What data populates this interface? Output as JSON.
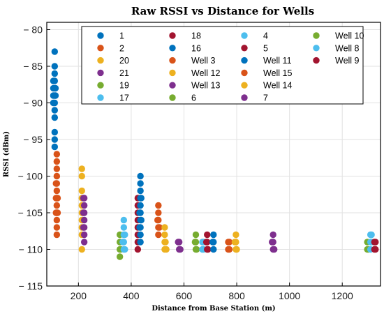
{
  "chart_data": {
    "type": "scatter",
    "title": "Raw RSSI vs Distance for Wells",
    "xlabel": "Distance from Base Station (m)",
    "ylabel": "RSSI (dBm)",
    "xlim": [
      80,
      1345
    ],
    "ylim": [
      -115,
      -79
    ],
    "xticks": [
      200,
      400,
      600,
      800,
      1000,
      1200
    ],
    "yticks": [
      -115,
      -110,
      -105,
      -100,
      -95,
      -90,
      -85,
      -80
    ],
    "grid": true,
    "legend_position": "top",
    "legend_columns": 4,
    "series": [
      {
        "name": "1",
        "color": "#0072BD",
        "points": [
          [
            110,
            -83
          ],
          [
            110,
            -85
          ],
          [
            110,
            -86
          ],
          [
            110,
            -87
          ],
          [
            110,
            -88
          ],
          [
            110,
            -89
          ],
          [
            110,
            -90
          ],
          [
            110,
            -91
          ],
          [
            110,
            -92
          ],
          [
            110,
            -94
          ],
          [
            110,
            -95
          ],
          [
            110,
            -96
          ],
          [
            105,
            -87
          ],
          [
            105,
            -88
          ],
          [
            105,
            -89
          ],
          [
            105,
            -90
          ],
          [
            113,
            -88
          ],
          [
            113,
            -89
          ]
        ]
      },
      {
        "name": "2",
        "color": "#D95319",
        "points": [
          [
            118,
            -97
          ],
          [
            118,
            -98
          ],
          [
            118,
            -99
          ],
          [
            118,
            -100
          ],
          [
            118,
            -101
          ],
          [
            118,
            -102
          ],
          [
            118,
            -103
          ],
          [
            118,
            -104
          ],
          [
            118,
            -105
          ],
          [
            118,
            -106
          ],
          [
            118,
            -107
          ],
          [
            118,
            -108
          ],
          [
            115,
            -101
          ],
          [
            115,
            -103
          ],
          [
            115,
            -105
          ],
          [
            121,
            -103
          ],
          [
            121,
            -105
          ]
        ]
      },
      {
        "name": "20",
        "color": "#EDB120",
        "points": [
          [
            213,
            -99
          ],
          [
            213,
            -100
          ],
          [
            213,
            -102
          ],
          [
            213,
            -103
          ],
          [
            213,
            -104
          ],
          [
            213,
            -105
          ],
          [
            213,
            -106
          ],
          [
            213,
            -107
          ],
          [
            213,
            -108
          ],
          [
            213,
            -110
          ],
          [
            216,
            -105
          ],
          [
            216,
            -106
          ]
        ]
      },
      {
        "name": "21",
        "color": "#7E2F8E",
        "points": [
          [
            222,
            -103
          ],
          [
            222,
            -104
          ],
          [
            222,
            -105
          ],
          [
            222,
            -106
          ],
          [
            222,
            -107
          ],
          [
            222,
            -108
          ],
          [
            222,
            -109
          ],
          [
            219,
            -103
          ],
          [
            219,
            -105
          ],
          [
            219,
            -107
          ]
        ]
      },
      {
        "name": "19",
        "color": "#77AC30",
        "points": [
          [
            357,
            -108
          ],
          [
            357,
            -109
          ],
          [
            357,
            -110
          ],
          [
            357,
            -111
          ],
          [
            360,
            -110
          ]
        ]
      },
      {
        "name": "17",
        "color": "#4DBEEE",
        "points": [
          [
            372,
            -106
          ],
          [
            372,
            -107
          ],
          [
            372,
            -108
          ],
          [
            372,
            -109
          ],
          [
            372,
            -110
          ],
          [
            368,
            -109
          ],
          [
            376,
            -108
          ],
          [
            376,
            -110
          ]
        ]
      },
      {
        "name": "18",
        "color": "#A2142F",
        "points": [
          [
            425,
            -103
          ],
          [
            425,
            -104
          ],
          [
            425,
            -105
          ],
          [
            425,
            -106
          ],
          [
            425,
            -107
          ],
          [
            425,
            -108
          ],
          [
            425,
            -109
          ],
          [
            425,
            -110
          ]
        ]
      },
      {
        "name": "16",
        "color": "#0072BD",
        "points": [
          [
            435,
            -100
          ],
          [
            435,
            -101
          ],
          [
            435,
            -102
          ],
          [
            435,
            -103
          ],
          [
            435,
            -104
          ],
          [
            435,
            -105
          ],
          [
            435,
            -106
          ],
          [
            435,
            -107
          ],
          [
            435,
            -108
          ],
          [
            435,
            -109
          ],
          [
            432,
            -105
          ],
          [
            432,
            -107
          ],
          [
            438,
            -103
          ],
          [
            438,
            -106
          ]
        ]
      },
      {
        "name": "Well 3",
        "color": "#D95319",
        "points": [
          [
            503,
            -104
          ],
          [
            503,
            -105
          ],
          [
            503,
            -106
          ],
          [
            503,
            -107
          ],
          [
            503,
            -108
          ],
          [
            500,
            -106
          ],
          [
            507,
            -107
          ]
        ]
      },
      {
        "name": "Well 12",
        "color": "#EDB120",
        "points": [
          [
            527,
            -107
          ],
          [
            527,
            -108
          ],
          [
            527,
            -109
          ],
          [
            527,
            -110
          ],
          [
            530,
            -109
          ],
          [
            533,
            -110
          ]
        ]
      },
      {
        "name": "Well 13",
        "color": "#7E2F8E",
        "points": [
          [
            582,
            -109
          ],
          [
            582,
            -110
          ],
          [
            578,
            -109
          ],
          [
            586,
            -110
          ]
        ]
      },
      {
        "name": "6",
        "color": "#77AC30",
        "points": [
          [
            645,
            -108
          ],
          [
            645,
            -109
          ],
          [
            645,
            -110
          ],
          [
            642,
            -109
          ],
          [
            648,
            -110
          ]
        ]
      },
      {
        "name": "4",
        "color": "#4DBEEE",
        "points": [
          [
            670,
            -109
          ],
          [
            670,
            -110
          ],
          [
            674,
            -109
          ],
          [
            674,
            -110
          ]
        ]
      },
      {
        "name": "5",
        "color": "#A2142F",
        "points": [
          [
            688,
            -108
          ],
          [
            688,
            -109
          ],
          [
            688,
            -110
          ],
          [
            685,
            -109
          ],
          [
            691,
            -110
          ]
        ]
      },
      {
        "name": "Well 11",
        "color": "#0072BD",
        "points": [
          [
            712,
            -108
          ],
          [
            712,
            -109
          ],
          [
            712,
            -110
          ],
          [
            709,
            -109
          ]
        ]
      },
      {
        "name": "Well 15",
        "color": "#D95319",
        "points": [
          [
            768,
            -109
          ],
          [
            768,
            -110
          ],
          [
            772,
            -109
          ],
          [
            772,
            -110
          ]
        ]
      },
      {
        "name": "Well 14",
        "color": "#EDB120",
        "points": [
          [
            797,
            -108
          ],
          [
            797,
            -109
          ],
          [
            797,
            -110
          ],
          [
            793,
            -109
          ],
          [
            800,
            -110
          ]
        ]
      },
      {
        "name": "7",
        "color": "#7E2F8E",
        "points": [
          [
            938,
            -108
          ],
          [
            938,
            -109
          ],
          [
            938,
            -110
          ],
          [
            934,
            -109
          ],
          [
            942,
            -110
          ]
        ]
      },
      {
        "name": "Well 10",
        "color": "#77AC30",
        "points": [
          [
            1295,
            -109
          ],
          [
            1295,
            -110
          ],
          [
            1299,
            -110
          ]
        ]
      },
      {
        "name": "Well 8",
        "color": "#4DBEEE",
        "points": [
          [
            1307,
            -108
          ],
          [
            1307,
            -109
          ],
          [
            1307,
            -110
          ],
          [
            1311,
            -108
          ],
          [
            1311,
            -109
          ]
        ]
      },
      {
        "name": "Well 9",
        "color": "#A2142F",
        "points": [
          [
            1322,
            -109
          ],
          [
            1322,
            -110
          ],
          [
            1326,
            -109
          ],
          [
            1326,
            -110
          ]
        ]
      }
    ]
  }
}
